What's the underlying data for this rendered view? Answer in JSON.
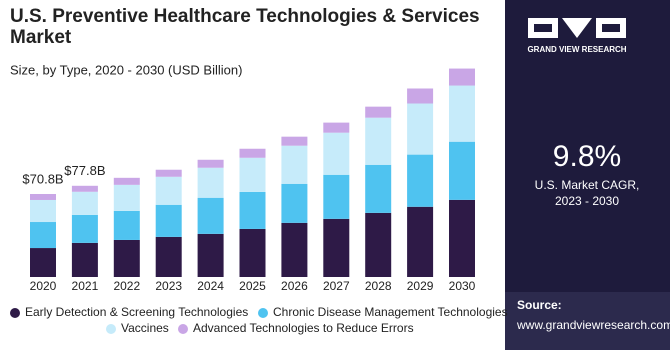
{
  "chart_data": {
    "type": "stacked-bar",
    "title": "U.S. Preventive Healthcare Technologies & Services Market",
    "subtitle": "Size, by Type, 2020 - 2030 (USD Billion)",
    "categories": [
      "2020",
      "2021",
      "2022",
      "2023",
      "2024",
      "2025",
      "2026",
      "2027",
      "2028",
      "2029",
      "2030"
    ],
    "series": [
      {
        "name": "Early Detection & Screening Technologies",
        "color": "#2e1a47",
        "values": [
          24.7,
          29.1,
          31.6,
          34.2,
          36.8,
          41.0,
          46.2,
          49.6,
          54.7,
          59.9,
          65.8
        ]
      },
      {
        "name": "Chronic Disease Management Technologies",
        "color": "#4fc3f0",
        "values": [
          22.2,
          23.9,
          24.8,
          27.4,
          30.8,
          31.6,
          33.3,
          37.6,
          41.0,
          44.5,
          49.6
        ]
      },
      {
        "name": "Vaccines",
        "color": "#c6ebfa",
        "values": [
          18.8,
          19.7,
          22.2,
          23.9,
          25.6,
          29.1,
          32.5,
          35.9,
          40.2,
          43.6,
          47.9
        ]
      },
      {
        "name": "Advanced Technologies to Reduce Errors",
        "color": "#c9a6e6",
        "values": [
          5.1,
          5.1,
          6.0,
          6.0,
          6.8,
          7.7,
          7.7,
          8.6,
          9.4,
          12.8,
          14.5
        ]
      }
    ],
    "annotations": [
      {
        "category": "2020",
        "value": 70.8,
        "label": "$70.8B"
      },
      {
        "category": "2021",
        "value": 77.8,
        "label": "$77.8B"
      }
    ]
  },
  "side_panel": {
    "brand": "GRAND VIEW RESEARCH",
    "cagr": "9.8%",
    "cagr_label": [
      "U.S. Market CAGR,",
      "2023 - 2030"
    ],
    "source_title": "Source:",
    "source_url": "www.grandviewresearch.com"
  }
}
